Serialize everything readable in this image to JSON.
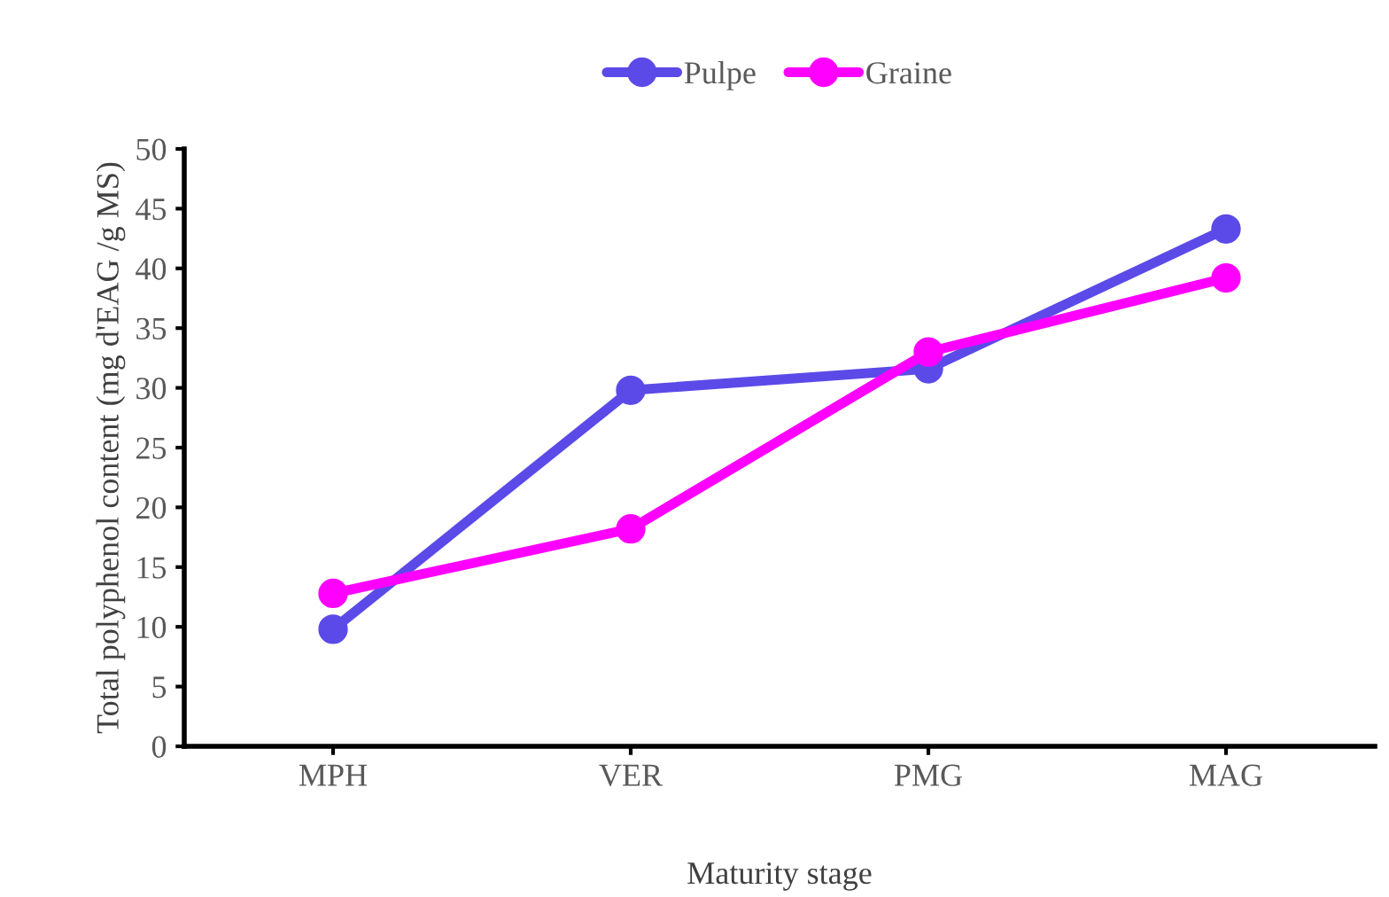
{
  "chart_data": {
    "type": "line",
    "xlabel": "Maturity stage",
    "ylabel": "Total polyphenol content (mg d'EAG /g MS)",
    "categories": [
      "MPH",
      "VER",
      "PMG",
      "MAG"
    ],
    "series": [
      {
        "name": "Pulpe",
        "color": "#5b4ae8",
        "values": [
          9.8,
          29.8,
          31.6,
          43.3
        ]
      },
      {
        "name": "Graine",
        "color": "#ff00ff",
        "values": [
          12.8,
          18.2,
          33.0,
          39.2
        ]
      }
    ],
    "ylim": [
      0,
      50
    ],
    "yticks": [
      0,
      5,
      10,
      15,
      20,
      25,
      30,
      35,
      40,
      45,
      50
    ],
    "grid": false,
    "legend": "top",
    "marker": "circle",
    "line_style": "solid"
  }
}
